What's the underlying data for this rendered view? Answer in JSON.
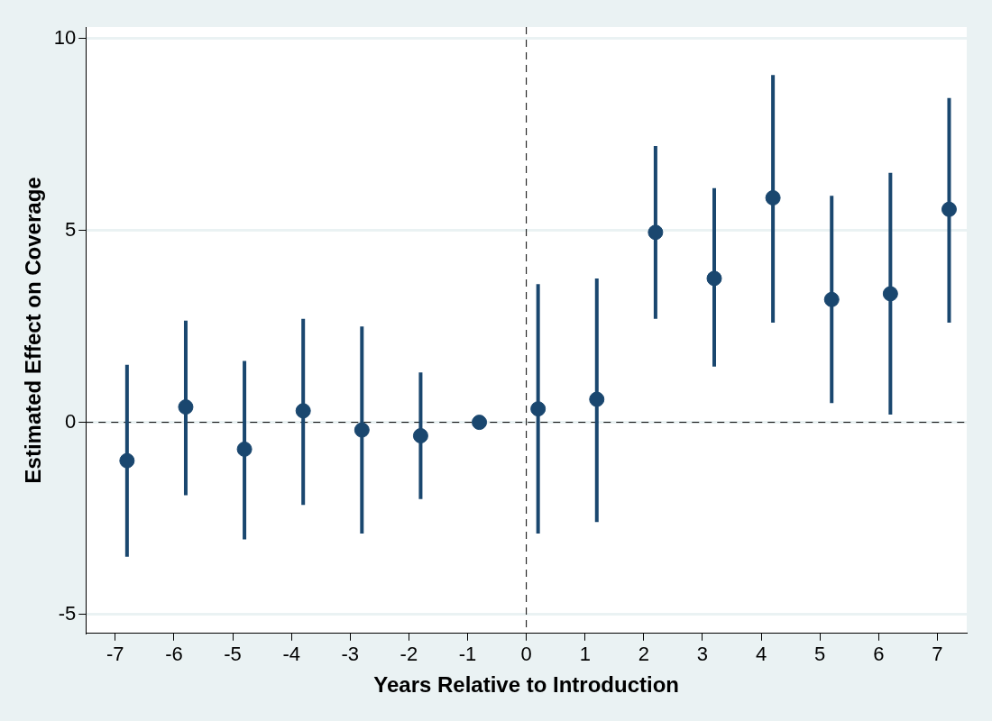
{
  "chart_data": {
    "type": "scatter",
    "x_label": "Years Relative to Introduction",
    "y_label": "Estimated Effect on Coverage",
    "x": [
      -6.8,
      -5.8,
      -4.8,
      -3.8,
      -2.8,
      -1.8,
      -0.8,
      0.2,
      1.2,
      2.2,
      3.2,
      4.2,
      5.2,
      6.2,
      7.2
    ],
    "values": [
      -1.0,
      0.4,
      -0.7,
      0.3,
      -0.2,
      -0.35,
      0.0,
      0.35,
      0.6,
      4.95,
      3.75,
      5.85,
      3.2,
      3.35,
      5.55
    ],
    "lower": [
      -3.5,
      -1.9,
      -3.05,
      -2.15,
      -2.9,
      -2.0,
      0.0,
      -2.9,
      -2.6,
      2.7,
      1.45,
      2.6,
      0.5,
      0.2,
      2.6
    ],
    "upper": [
      1.5,
      2.65,
      1.6,
      2.7,
      2.5,
      1.3,
      0.0,
      3.6,
      3.75,
      7.2,
      6.1,
      9.05,
      5.9,
      6.5,
      8.45
    ],
    "color": "#1a476f",
    "marker": "circle",
    "xlim": [
      -7.5,
      7.5
    ],
    "xticks": [
      -7,
      -6,
      -5,
      -4,
      -3,
      -2,
      -1,
      0,
      1,
      2,
      3,
      4,
      5,
      6,
      7
    ],
    "ylim": [
      -5.5,
      10.3
    ],
    "yticks": [
      -5,
      0,
      5,
      10
    ],
    "grid": true,
    "reference_lines": [
      {
        "axis": "y",
        "value": 0,
        "line_style": "dashed"
      },
      {
        "axis": "x",
        "value": 0,
        "line_style": "dashed"
      }
    ]
  }
}
